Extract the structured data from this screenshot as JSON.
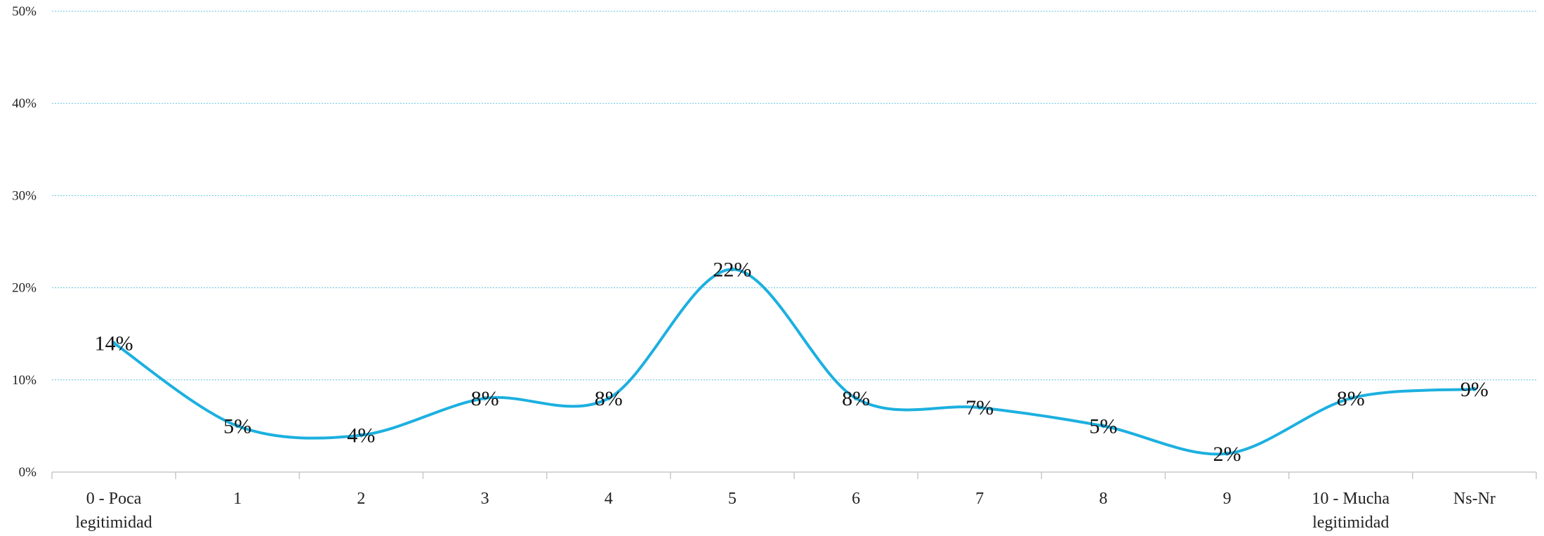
{
  "chart_data": {
    "type": "line",
    "categories": [
      [
        "0 - Poca",
        "legitimidad"
      ],
      [
        "1"
      ],
      [
        "2"
      ],
      [
        "3"
      ],
      [
        "4"
      ],
      [
        "5"
      ],
      [
        "6"
      ],
      [
        "7"
      ],
      [
        "8"
      ],
      [
        "9"
      ],
      [
        "10 - Mucha",
        "legitimidad"
      ],
      [
        "Ns-Nr"
      ]
    ],
    "values": [
      14,
      5,
      4,
      8,
      8,
      22,
      8,
      7,
      5,
      2,
      8,
      9
    ],
    "data_labels": [
      "14%",
      "5%",
      "4%",
      "8%",
      "8%",
      "22%",
      "8%",
      "7%",
      "5%",
      "2%",
      "8%",
      "9%"
    ],
    "y_ticks": [
      0,
      10,
      20,
      30,
      40,
      50
    ],
    "y_tick_labels": [
      "0%",
      "10%",
      "20%",
      "30%",
      "40%",
      "50%"
    ],
    "ylim": [
      0,
      50
    ],
    "grid": true,
    "line_color": "#1cb0e0",
    "grid_color": "#5fc4e0",
    "legend": "none"
  }
}
